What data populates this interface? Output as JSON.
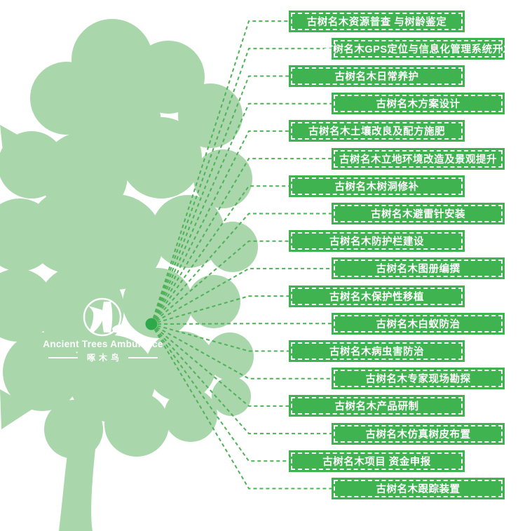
{
  "logo": {
    "title": "Ancient Trees Ambulance",
    "subtitle": "啄木鸟",
    "emblem_icon": "woodpecker-on-trunk-icon"
  },
  "services": [
    "古树名木资源普查 与树龄鉴定",
    "古树名木GPS定位与信息化管理系统开发",
    "古树名木日常养护",
    "古树名木方案设计",
    "古树名木土壤改良及配方施肥",
    "古树名木立地环境改造及景观提升",
    "古树名木树洞修补",
    "古树名木避雷针安装",
    "古树名木防护栏建设",
    "古树名木图册编撰",
    "古树名木保护性移植",
    "古树名木白蚁防治",
    "古树名木病虫害防治",
    "古树名木专家现场勘探",
    "古树名木产品研制",
    "古树名木仿真树皮布置",
    "古树名木项目 资金申报",
    "古树名木跟踪装置"
  ],
  "colors": {
    "tree_fill": "#a9d6ab",
    "label_bg": "#3fb34f",
    "label_border": "#ffffff",
    "connector": "#4fb158",
    "hub_dot": "#2fa84b",
    "text": "#ffffff"
  }
}
